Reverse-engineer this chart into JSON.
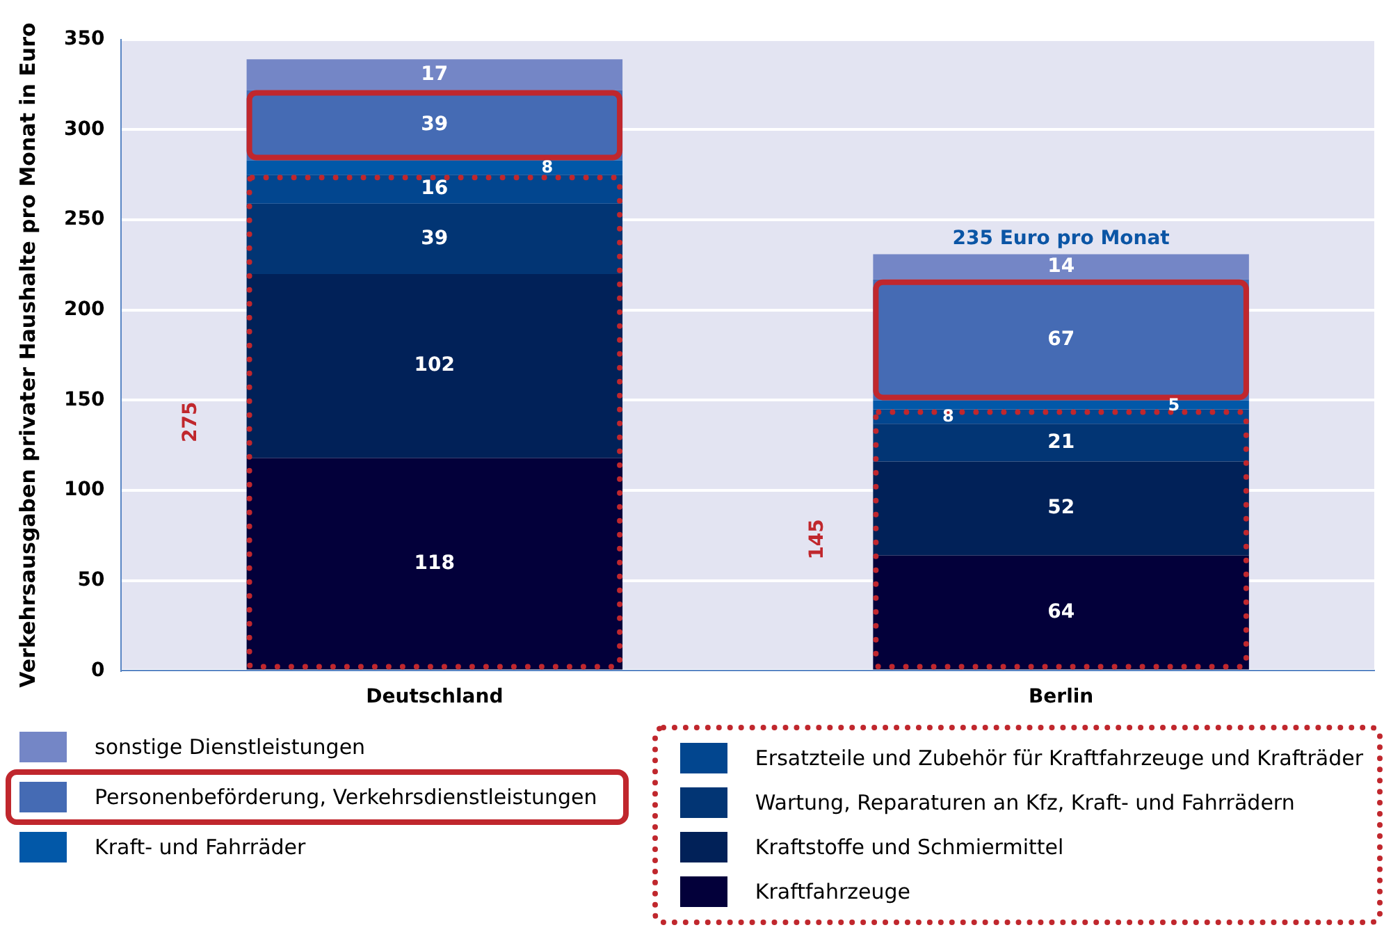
{
  "chart_data": {
    "type": "bar",
    "stacked": true,
    "ylabel": "Verkehrsausgaben privater Haushalte pro Monat in Euro",
    "categories": [
      "Deutschland",
      "Berlin"
    ],
    "series": [
      {
        "name": "Kraftfahrzeuge",
        "color": "#03003a",
        "values": [
          118,
          64
        ]
      },
      {
        "name": "Kraftstoffe und Schmiermittel",
        "color": "#012158",
        "values": [
          102,
          52
        ]
      },
      {
        "name": "Wartung, Reparaturen an Kfz, Kraft- und Fahrrädern",
        "color": "#023574",
        "values": [
          39,
          21
        ]
      },
      {
        "name": "Ersatzteile und Zubehör für Kraftfahrzeuge und Krafträder",
        "color": "#02468f",
        "values": [
          16,
          8
        ]
      },
      {
        "name": "Kraft- und Fahrräder",
        "color": "#0258a8",
        "values": [
          8,
          5
        ]
      },
      {
        "name": "Personenbeförderung, Verkehrsdienstleistungen",
        "color": "#456bb4",
        "values": [
          39,
          67
        ]
      },
      {
        "name": "sonstige Dienstleistungen",
        "color": "#7486c6",
        "values": [
          17,
          14
        ]
      }
    ],
    "ylim": [
      0,
      350
    ],
    "yticks": [
      0,
      50,
      100,
      150,
      200,
      250,
      300,
      350
    ],
    "grid": "y",
    "legend": "bottom",
    "data_labels": true,
    "annotations": [
      "275",
      "145",
      "235 Euro pro Monat"
    ]
  }
}
